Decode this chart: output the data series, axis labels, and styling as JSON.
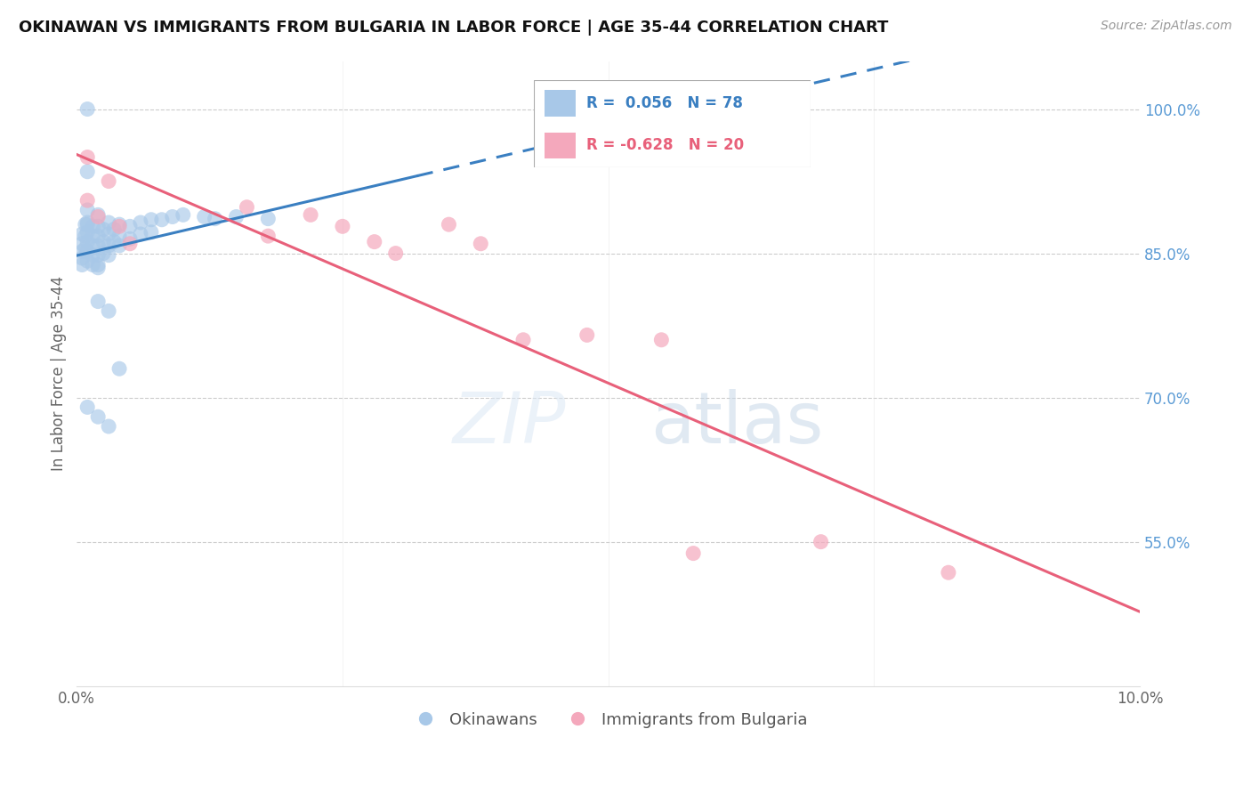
{
  "title": "OKINAWAN VS IMMIGRANTS FROM BULGARIA IN LABOR FORCE | AGE 35-44 CORRELATION CHART",
  "source": "Source: ZipAtlas.com",
  "ylabel": "In Labor Force | Age 35-44",
  "blue_color": "#a8c8e8",
  "pink_color": "#f4a8bc",
  "blue_line_color": "#3a7fc1",
  "pink_line_color": "#e8607a",
  "xlim": [
    0.0,
    0.1
  ],
  "ylim": [
    0.4,
    1.05
  ],
  "y_ticks_right": [
    0.55,
    0.7,
    0.85,
    1.0
  ],
  "y_tick_labels_right": [
    "55.0%",
    "70.0%",
    "85.0%",
    "100.0%"
  ],
  "blue_x": [
    0.0005,
    0.0005,
    0.0005,
    0.0005,
    0.0005,
    0.0008,
    0.0008,
    0.0008,
    0.001,
    0.001,
    0.001,
    0.001,
    0.001,
    0.001,
    0.0015,
    0.0015,
    0.0015,
    0.0015,
    0.0015,
    0.002,
    0.002,
    0.002,
    0.002,
    0.002,
    0.002,
    0.0025,
    0.0025,
    0.0025,
    0.003,
    0.003,
    0.003,
    0.003,
    0.0035,
    0.0035,
    0.004,
    0.004,
    0.004,
    0.005,
    0.005,
    0.006,
    0.006,
    0.007,
    0.007,
    0.008,
    0.009,
    0.01,
    0.012,
    0.013,
    0.015,
    0.018,
    0.001,
    0.001,
    0.001,
    0.002,
    0.002,
    0.003,
    0.004,
    0.001,
    0.002,
    0.003
  ],
  "blue_y": [
    0.87,
    0.86,
    0.852,
    0.845,
    0.838,
    0.88,
    0.868,
    0.855,
    0.895,
    0.882,
    0.872,
    0.862,
    0.852,
    0.842,
    0.878,
    0.868,
    0.858,
    0.848,
    0.838,
    0.89,
    0.878,
    0.868,
    0.858,
    0.848,
    0.838,
    0.875,
    0.862,
    0.85,
    0.882,
    0.87,
    0.858,
    0.848,
    0.875,
    0.862,
    0.88,
    0.868,
    0.858,
    0.878,
    0.865,
    0.882,
    0.87,
    0.885,
    0.872,
    0.885,
    0.888,
    0.89,
    0.888,
    0.886,
    0.888,
    0.886,
    1.0,
    0.935,
    0.88,
    0.835,
    0.8,
    0.79,
    0.73,
    0.69,
    0.68,
    0.67
  ],
  "pink_x": [
    0.001,
    0.001,
    0.002,
    0.003,
    0.004,
    0.005,
    0.016,
    0.018,
    0.022,
    0.025,
    0.028,
    0.03,
    0.035,
    0.038,
    0.042,
    0.048,
    0.055,
    0.058,
    0.07,
    0.082
  ],
  "pink_y": [
    0.95,
    0.905,
    0.888,
    0.925,
    0.878,
    0.86,
    0.898,
    0.868,
    0.89,
    0.878,
    0.862,
    0.85,
    0.88,
    0.86,
    0.76,
    0.765,
    0.76,
    0.538,
    0.55,
    0.518
  ],
  "blue_line_x0": 0.0,
  "blue_line_x_solid_end": 0.032,
  "blue_line_x1": 0.1,
  "pink_line_x0": 0.0,
  "pink_line_x1": 0.1,
  "watermark_zip": "ZIP",
  "watermark_atlas": "atlas"
}
